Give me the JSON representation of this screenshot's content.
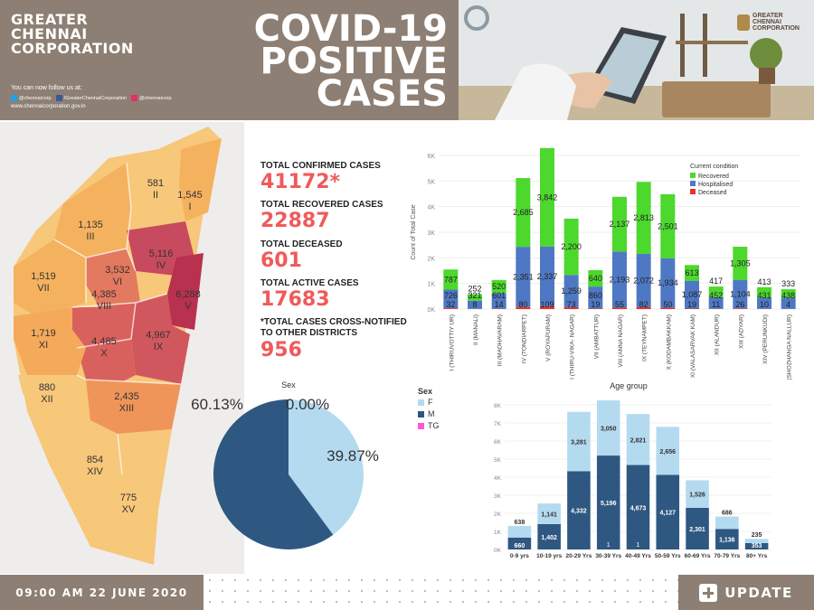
{
  "header": {
    "org_line1": "GREATER",
    "org_line2": "CHENNAI",
    "org_line3": "CORPORATION",
    "title_line1": "COVID-19",
    "title_line2": "POSITIVE",
    "title_line3": "CASES",
    "follow_text": "You can now follow us at:",
    "twitter": "@chennaicorp",
    "facebook": "/GreaterChennaiCorporation",
    "instagram": "@chennaicorp",
    "website": "www.chennaicorporation.gov.in",
    "logo_line1": "GREATER",
    "logo_line2": "CHENNAI",
    "logo_line3": "CORPORATION"
  },
  "map": {
    "zones": [
      {
        "zone": "I",
        "value": "1,545",
        "color": "#f5b25e"
      },
      {
        "zone": "II",
        "value": "581",
        "color": "#f7c77a"
      },
      {
        "zone": "III",
        "value": "1,135",
        "color": "#f5b25e"
      },
      {
        "zone": "IV",
        "value": "5,116",
        "color": "#c84a5e"
      },
      {
        "zone": "V",
        "value": "6,288",
        "color": "#b8314f"
      },
      {
        "zone": "VI",
        "value": "3,532",
        "color": "#e3795f"
      },
      {
        "zone": "VII",
        "value": "1,519",
        "color": "#f5b25e"
      },
      {
        "zone": "VIII",
        "value": "4,385",
        "color": "#d9615d"
      },
      {
        "zone": "IX",
        "value": "4,967",
        "color": "#d1575e"
      },
      {
        "zone": "X",
        "value": "4,485",
        "color": "#d9615d"
      },
      {
        "zone": "XI",
        "value": "1,719",
        "color": "#f5a95a"
      },
      {
        "zone": "XII",
        "value": "880",
        "color": "#f7c77a"
      },
      {
        "zone": "XIII",
        "value": "2,435",
        "color": "#f0955a"
      },
      {
        "zone": "XIV",
        "value": "854",
        "color": "#f7c77a"
      },
      {
        "zone": "XV",
        "value": "775",
        "color": "#f7c77a"
      }
    ]
  },
  "stats": {
    "confirmed_label": "TOTAL CONFIRMED CASES",
    "confirmed_value": "41172*",
    "recovered_label": "TOTAL RECOVERED CASES",
    "recovered_value": "22887",
    "deceased_label": "TOTAL DECEASED",
    "deceased_value": "601",
    "active_label": "TOTAL ACTIVE CASES",
    "active_value": "17683",
    "cross_label_line1": "*TOTAL CASES CROSS-NOTIFIED",
    "cross_label_line2": "TO OTHER DISTRICTS",
    "cross_value": "956"
  },
  "colors": {
    "brand_brown": "#8d7f73",
    "stat_red": "#f05a5a",
    "recovered": "#4cd82d",
    "hospitalised": "#4f78c4",
    "deceased": "#e8332a",
    "female": "#b4daf0",
    "male": "#2e5881",
    "tg": "#ff55dd"
  },
  "chart_data": [
    {
      "type": "bar",
      "stacked": true,
      "ylabel": "Count of Total Case",
      "legend_title": "Current condition",
      "legend_position": "top-right",
      "ylim": [
        0,
        6000
      ],
      "yticks": [
        "0K",
        "1K",
        "2K",
        "3K",
        "4K",
        "5K",
        "6K"
      ],
      "categories": [
        "I (THIRUVOTTIY UR)",
        "II (MANALI)",
        "III (MADHAVARAM)",
        "IV (TONDIARPET)",
        "V (ROYAPURAM)",
        "VI (THIRU-VIKA- NAGAR)",
        "VII (AMBATTUR)",
        "VIII (ANNA NAGAR)",
        "IX (TEYNAMPET)",
        "X (KODAMBAKKAM)",
        "XI (VALASARVAK KAM)",
        "XII (ALANDUR)",
        "XIII (ADYAR)",
        "XIV (PERUNKUDI)",
        "XV (SHOZHANGA NALLUR)"
      ],
      "series": [
        {
          "name": "Recovered",
          "values": [
            787,
            252,
            520,
            2685,
            3842,
            2200,
            640,
            2137,
            2813,
            2501,
            613,
            417,
            1305,
            413,
            333
          ]
        },
        {
          "name": "Hospitalised",
          "values": [
            726,
            321,
            601,
            2351,
            2337,
            1259,
            860,
            2193,
            2072,
            1934,
            1087,
            452,
            1104,
            431,
            438
          ]
        },
        {
          "name": "Deceased",
          "values": [
            32,
            8,
            14,
            80,
            109,
            73,
            19,
            55,
            82,
            50,
            19,
            11,
            26,
            10,
            4
          ]
        }
      ],
      "labels": {
        "recovered": [
          "787",
          "252",
          "520",
          "2,685",
          "3,842",
          "2,200",
          "640",
          "2,137",
          "2,813",
          "2,501",
          "613",
          "417",
          "1,305",
          "413",
          "333"
        ],
        "hospitalised": [
          "726",
          "321",
          "601",
          "2,351",
          "2,337",
          "1,259",
          "860",
          "2,193",
          "2,072",
          "1,934",
          "1,087",
          "452",
          "1,104",
          "431",
          "438"
        ],
        "deceased": [
          "32",
          "8",
          "14",
          "80",
          "109",
          "73",
          "19",
          "55",
          "82",
          "50",
          "19",
          "11",
          "26",
          "10",
          "4"
        ]
      }
    },
    {
      "type": "pie",
      "title": "Sex",
      "legend_title": "Sex",
      "legend_position": "left",
      "slices": [
        {
          "name": "F",
          "value": 39.87,
          "label": "39.87%"
        },
        {
          "name": "M",
          "value": 60.13,
          "label": "60.13%"
        },
        {
          "name": "TG",
          "value": 0.0,
          "label": "0.00%"
        }
      ]
    },
    {
      "type": "bar",
      "stacked": true,
      "title": "Age group",
      "ylim": [
        0,
        8000
      ],
      "yticks": [
        "0K",
        "1K",
        "2K",
        "3K",
        "4K",
        "5K",
        "6K",
        "7K",
        "8K"
      ],
      "categories": [
        "0-9 yrs",
        "10-19 yrs",
        "20-29 Yrs",
        "30-39 Yrs",
        "40-49 Yrs",
        "50-59 Yrs",
        "60-69 Yrs",
        "70-79 Yrs",
        "80+ Yrs"
      ],
      "series": [
        {
          "name": "M",
          "values": [
            660,
            1402,
            4332,
            5196,
            4673,
            4127,
            2301,
            1136,
            353
          ]
        },
        {
          "name": "F",
          "values": [
            638,
            1141,
            3281,
            3050,
            2821,
            2656,
            1526,
            686,
            235
          ]
        },
        {
          "name": "TG",
          "values": [
            0,
            0,
            0,
            1,
            1,
            0,
            0,
            0,
            0
          ]
        }
      ],
      "labels": {
        "M": [
          "660",
          "1,402",
          "4,332",
          "5,196",
          "4,673",
          "4,127",
          "2,301",
          "1,136",
          "353"
        ],
        "F": [
          "638",
          "1,141",
          "3,281",
          "3,050",
          "2,821",
          "2,656",
          "1,526",
          "686",
          "235"
        ],
        "TG": [
          "",
          "",
          "",
          "1",
          "1",
          "",
          "",
          "",
          ""
        ]
      }
    }
  ],
  "footer": {
    "datetime": "09:00 AM 22 JUNE 2020",
    "update_label": "UPDATE"
  }
}
